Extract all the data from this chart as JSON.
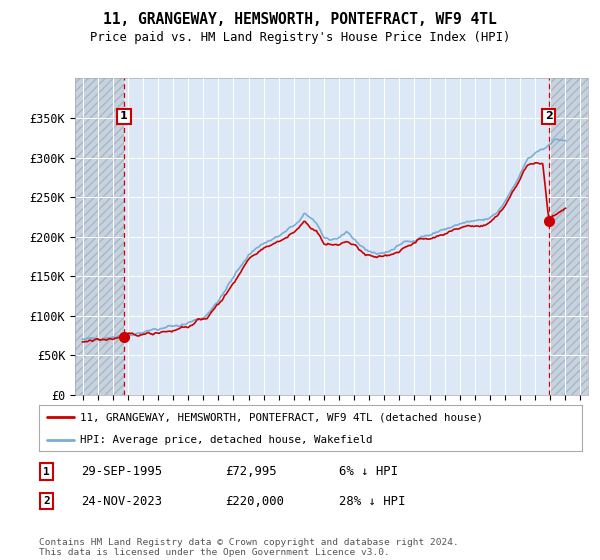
{
  "title": "11, GRANGEWAY, HEMSWORTH, PONTEFRACT, WF9 4TL",
  "subtitle": "Price paid vs. HM Land Registry's House Price Index (HPI)",
  "ylim": [
    0,
    400000
  ],
  "yticks": [
    0,
    50000,
    100000,
    150000,
    200000,
    250000,
    300000,
    350000
  ],
  "ytick_labels": [
    "£0",
    "£50K",
    "£100K",
    "£150K",
    "£200K",
    "£250K",
    "£300K",
    "£350K"
  ],
  "xlim_start": 1992.5,
  "xlim_end": 2026.5,
  "sale1_x": 1995.75,
  "sale1_y": 72995,
  "sale2_x": 2023.9,
  "sale2_y": 220000,
  "sale1_label": "1",
  "sale2_label": "2",
  "sale1_date": "29-SEP-1995",
  "sale1_price": "£72,995",
  "sale1_hpi": "6% ↓ HPI",
  "sale2_date": "24-NOV-2023",
  "sale2_price": "£220,000",
  "sale2_hpi": "28% ↓ HPI",
  "line_color_red": "#CC0000",
  "line_color_blue": "#7AADD4",
  "plot_bg": "#DCE8F5",
  "grid_color": "#FFFFFF",
  "dashed_color": "#CC0000",
  "legend_line1": "11, GRANGEWAY, HEMSWORTH, PONTEFRACT, WF9 4TL (detached house)",
  "legend_line2": "HPI: Average price, detached house, Wakefield",
  "footer": "Contains HM Land Registry data © Crown copyright and database right 2024.\nThis data is licensed under the Open Government Licence v3.0."
}
